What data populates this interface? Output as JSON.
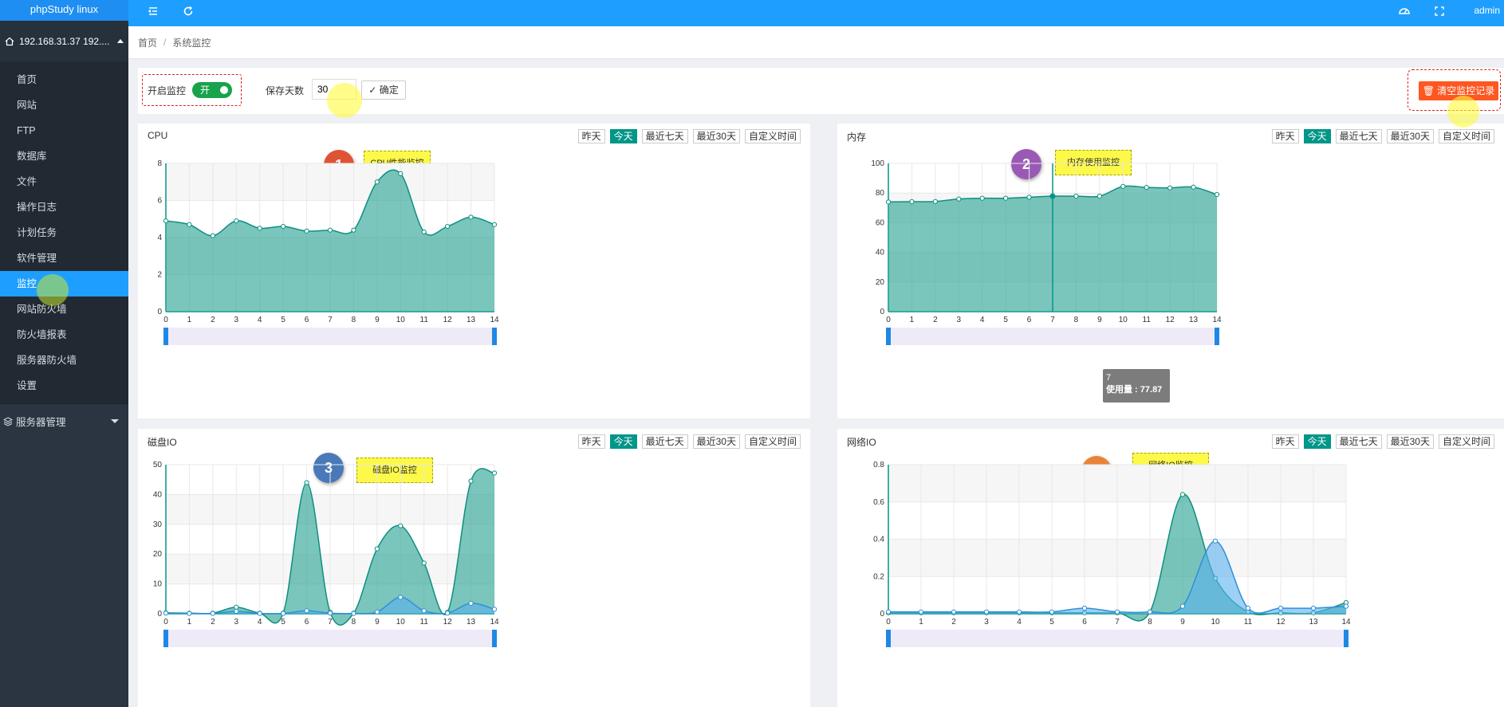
{
  "app": {
    "title": "phpStudy linux",
    "user": "admin"
  },
  "colors": {
    "accent": "#1e9fff",
    "sidebar": "#2b3541",
    "teal": "#009688",
    "danger": "#ff5722"
  },
  "sidebar": {
    "server": "192.168.31.37 192....",
    "items": [
      {
        "label": "首页"
      },
      {
        "label": "网站"
      },
      {
        "label": "FTP"
      },
      {
        "label": "数据库"
      },
      {
        "label": "文件"
      },
      {
        "label": "操作日志"
      },
      {
        "label": "计划任务"
      },
      {
        "label": "软件管理"
      },
      {
        "label": "监控",
        "active": true
      },
      {
        "label": "网站防火墙"
      },
      {
        "label": "防火墙报表"
      },
      {
        "label": "服务器防火墙"
      },
      {
        "label": "设置"
      }
    ],
    "group": "服务器管理"
  },
  "topbar": {
    "icons": [
      "menu-fold-icon",
      "refresh-icon",
      "dashboard-icon",
      "fullscreen-icon"
    ]
  },
  "breadcrumb": {
    "home": "首页",
    "sep": "/",
    "current": "系统监控"
  },
  "toolbar": {
    "monitor_label": "开启监控",
    "switch_label": "开",
    "keep_label": "保存天数",
    "keep_value": "30",
    "confirm_label": "确定",
    "clear_label": "清空监控记录"
  },
  "ranges": [
    "昨天",
    "今天",
    "最近七天",
    "最近30天",
    "自定义时间"
  ],
  "panels": {
    "cpu": {
      "title": "CPU",
      "badge": "1",
      "note": "CPU性能监控"
    },
    "mem": {
      "title": "内存",
      "badge": "2",
      "note": "内存使用监控",
      "tooltip_x": "7",
      "tooltip_value": "使用量 : 77.87"
    },
    "disk": {
      "title": "磁盘IO",
      "badge": "3",
      "note": "磁盘IO监控"
    },
    "net": {
      "title": "网络IO",
      "badge": "4",
      "note": "网络IO监控"
    }
  },
  "chart_data": [
    {
      "type": "area",
      "name": "cpu",
      "x": [
        0,
        1,
        2,
        3,
        4,
        5,
        6,
        7,
        8,
        9,
        10,
        11,
        12,
        13,
        14
      ],
      "ylim": [
        0,
        8
      ],
      "yticks": [
        0,
        2,
        4,
        6,
        8
      ],
      "series": [
        {
          "values": [
            4.9,
            4.7,
            4.1,
            4.9,
            4.5,
            4.6,
            4.35,
            4.4,
            4.4,
            7.0,
            7.45,
            4.3,
            4.6,
            5.1,
            4.7
          ],
          "color": "#33a898"
        }
      ]
    },
    {
      "type": "area",
      "name": "mem",
      "x": [
        0,
        1,
        2,
        3,
        4,
        5,
        6,
        7,
        8,
        9,
        10,
        11,
        12,
        13,
        14
      ],
      "ylim": [
        0,
        100
      ],
      "yticks": [
        0,
        20,
        40,
        60,
        80,
        100
      ],
      "series": [
        {
          "values": [
            74,
            74.2,
            74.3,
            76,
            76.5,
            76.5,
            77.2,
            77.87,
            77.9,
            77.9,
            84.5,
            83.8,
            83.5,
            84,
            79
          ],
          "color": "#33a898"
        }
      ]
    },
    {
      "type": "area",
      "name": "disk",
      "x": [
        0,
        1,
        2,
        3,
        4,
        5,
        6,
        7,
        8,
        9,
        10,
        11,
        12,
        13,
        14
      ],
      "ylim": [
        0,
        50
      ],
      "yticks": [
        0,
        10,
        20,
        30,
        40,
        50
      ],
      "series": [
        {
          "values": [
            0.3,
            0.2,
            0.2,
            2.2,
            0.2,
            0.2,
            44,
            0.5,
            0.2,
            21.8,
            29.5,
            17,
            0.5,
            44.5,
            47.2
          ],
          "color": "#33a898"
        },
        {
          "values": [
            0.2,
            0.1,
            0.1,
            0.8,
            0.1,
            0.1,
            1.0,
            0.2,
            0.1,
            0.6,
            5.5,
            1.0,
            0.2,
            3.5,
            1.5
          ],
          "color": "#5ab1ef"
        }
      ]
    },
    {
      "type": "area",
      "name": "net",
      "x": [
        0,
        1,
        2,
        3,
        4,
        5,
        6,
        7,
        8,
        9,
        10,
        11,
        12,
        13,
        14
      ],
      "ylim": [
        0,
        0.8
      ],
      "yticks": [
        0,
        0.2,
        0.4,
        0.6,
        0.8
      ],
      "series": [
        {
          "values": [
            0.005,
            0.005,
            0.005,
            0.005,
            0.005,
            0.005,
            0.005,
            0.005,
            0.01,
            0.64,
            0.19,
            0.01,
            0.005,
            0.005,
            0.06
          ],
          "color": "#33a898"
        },
        {
          "values": [
            0.01,
            0.01,
            0.01,
            0.01,
            0.01,
            0.01,
            0.03,
            0.01,
            0.01,
            0.04,
            0.39,
            0.03,
            0.03,
            0.03,
            0.04
          ],
          "color": "#5ab1ef"
        }
      ]
    }
  ]
}
